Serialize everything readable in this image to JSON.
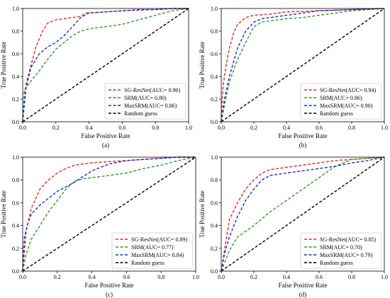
{
  "chart_data": [
    {
      "type": "line",
      "panel_label": "(a)",
      "xlabel": "False Positive Rate",
      "ylabel": "True Positive Rate",
      "xlim": [
        0.0,
        1.0
      ],
      "ylim": [
        0.0,
        1.0
      ],
      "xticks": [
        "0.0",
        "0.2",
        "0.4",
        "0.6",
        "0.8",
        "1.0"
      ],
      "yticks": [
        "0.0",
        "0.2",
        "0.4",
        "0.6",
        "0.8",
        "1.0"
      ],
      "grid": false,
      "legend_position": "lower-right",
      "series": [
        {
          "name": "SG-ResNet(AUC= 0.90)",
          "color": "#e8241c",
          "dash": "dashed",
          "x": [
            0,
            0.02,
            0.05,
            0.08,
            0.12,
            0.15,
            0.2,
            0.3,
            0.35,
            0.38,
            0.5,
            0.6,
            0.8,
            0.9,
            1.0
          ],
          "y": [
            0,
            0.33,
            0.5,
            0.66,
            0.8,
            0.87,
            0.9,
            0.92,
            0.93,
            0.96,
            0.97,
            0.98,
            0.99,
            1.0,
            1.0
          ]
        },
        {
          "name": "SRM(AUC= 0.80)",
          "color": "#2a9d22",
          "dash": "dashed",
          "x": [
            0,
            0.01,
            0.05,
            0.1,
            0.15,
            0.2,
            0.25,
            0.3,
            0.35,
            0.4,
            0.5,
            0.6,
            0.7,
            0.8,
            0.9,
            1.0
          ],
          "y": [
            0,
            0.28,
            0.36,
            0.45,
            0.55,
            0.64,
            0.7,
            0.76,
            0.8,
            0.82,
            0.84,
            0.86,
            0.9,
            0.94,
            0.98,
            1.0
          ]
        },
        {
          "name": "MaxSRM(AUC= 0.86)",
          "color": "#1f2ad8",
          "dash": "dashed",
          "x": [
            0,
            0.02,
            0.05,
            0.1,
            0.15,
            0.2,
            0.25,
            0.3,
            0.35,
            0.4,
            0.5,
            0.6,
            0.7,
            0.8,
            0.9,
            1.0
          ],
          "y": [
            0,
            0.3,
            0.48,
            0.6,
            0.66,
            0.7,
            0.76,
            0.84,
            0.92,
            0.96,
            0.97,
            0.98,
            0.99,
            0.99,
            1.0,
            1.0
          ]
        },
        {
          "name": "Random guess",
          "color": "#000000",
          "dash": "dashed",
          "x": [
            0,
            1.0
          ],
          "y": [
            0,
            1.0
          ]
        }
      ]
    },
    {
      "type": "line",
      "panel_label": "(b)",
      "xlabel": "False Positive Rate",
      "ylabel": "True Positive Rate",
      "xlim": [
        0.0,
        1.0
      ],
      "ylim": [
        0.0,
        1.0
      ],
      "xticks": [
        "0.0",
        "0.2",
        "0.4",
        "0.6",
        "0.8",
        "1.0"
      ],
      "yticks": [
        "0.0",
        "0.2",
        "0.4",
        "0.6",
        "0.8",
        "1.0"
      ],
      "grid": false,
      "legend_position": "lower-right",
      "series": [
        {
          "name": "SG-ResNet(AUC= 0.94)",
          "color": "#e8241c",
          "dash": "dashed",
          "x": [
            0,
            0.01,
            0.03,
            0.05,
            0.08,
            0.1,
            0.15,
            0.2,
            0.3,
            0.4,
            0.6,
            0.8,
            1.0
          ],
          "y": [
            0,
            0.3,
            0.5,
            0.65,
            0.8,
            0.86,
            0.92,
            0.94,
            0.95,
            0.97,
            0.98,
            0.99,
            1.0
          ]
        },
        {
          "name": "SRM(AUC= 0.86)",
          "color": "#2a9d22",
          "dash": "dashed",
          "x": [
            0,
            0.02,
            0.05,
            0.1,
            0.15,
            0.2,
            0.25,
            0.3,
            0.4,
            0.5,
            0.6,
            0.7,
            0.8,
            0.9,
            1.0
          ],
          "y": [
            0,
            0.15,
            0.35,
            0.55,
            0.7,
            0.84,
            0.88,
            0.89,
            0.91,
            0.92,
            0.94,
            0.96,
            0.98,
            0.99,
            1.0
          ]
        },
        {
          "name": "MaxSRM(AUC= 0.90)",
          "color": "#1f2ad8",
          "dash": "dashed",
          "x": [
            0,
            0.02,
            0.05,
            0.1,
            0.15,
            0.2,
            0.25,
            0.3,
            0.4,
            0.5,
            0.6,
            0.8,
            1.0
          ],
          "y": [
            0,
            0.2,
            0.4,
            0.65,
            0.8,
            0.88,
            0.91,
            0.92,
            0.94,
            0.96,
            0.98,
            0.99,
            1.0
          ]
        },
        {
          "name": "Random guess",
          "color": "#000000",
          "dash": "dashed",
          "x": [
            0,
            1.0
          ],
          "y": [
            0,
            1.0
          ]
        }
      ]
    },
    {
      "type": "line",
      "panel_label": "(c)",
      "xlabel": "False Positive Rate",
      "ylabel": "True Positive Rate",
      "xlim": [
        0.0,
        1.0
      ],
      "ylim": [
        0.0,
        1.0
      ],
      "xticks": [
        "0.0",
        "0.2",
        "0.4",
        "0.6",
        "0.8",
        "1.0"
      ],
      "yticks": [
        "0.0",
        "0.2",
        "0.4",
        "0.6",
        "0.8",
        "1.0"
      ],
      "grid": false,
      "legend_position": "lower-right",
      "series": [
        {
          "name": "SG-ResNet(AUC= 0.89)",
          "color": "#e8241c",
          "dash": "dashed",
          "x": [
            0,
            0.02,
            0.05,
            0.1,
            0.15,
            0.2,
            0.25,
            0.3,
            0.4,
            0.5,
            0.6,
            0.7,
            0.8,
            0.9,
            1.0
          ],
          "y": [
            0,
            0.35,
            0.55,
            0.72,
            0.8,
            0.86,
            0.9,
            0.93,
            0.95,
            0.96,
            0.97,
            0.98,
            0.99,
            1.0,
            1.0
          ]
        },
        {
          "name": "SRM(AUC= 0.77)",
          "color": "#2a9d22",
          "dash": "dashed",
          "x": [
            0,
            0.02,
            0.05,
            0.1,
            0.15,
            0.2,
            0.25,
            0.3,
            0.35,
            0.4,
            0.5,
            0.6,
            0.7,
            0.8,
            0.9,
            1.0
          ],
          "y": [
            0,
            0.15,
            0.28,
            0.4,
            0.52,
            0.62,
            0.72,
            0.79,
            0.81,
            0.82,
            0.84,
            0.86,
            0.9,
            0.93,
            0.97,
            1.0
          ]
        },
        {
          "name": "MaxSRM(AUC= 0.84)",
          "color": "#1f2ad8",
          "dash": "dashed",
          "x": [
            0,
            0.01,
            0.03,
            0.05,
            0.1,
            0.15,
            0.2,
            0.3,
            0.4,
            0.5,
            0.6,
            0.7,
            0.8,
            0.9,
            1.0
          ],
          "y": [
            0,
            0.3,
            0.42,
            0.5,
            0.58,
            0.64,
            0.7,
            0.78,
            0.88,
            0.94,
            0.97,
            0.98,
            0.99,
            1.0,
            1.0
          ]
        },
        {
          "name": "Random guess",
          "color": "#000000",
          "dash": "dashed",
          "x": [
            0,
            1.0
          ],
          "y": [
            0,
            1.0
          ]
        }
      ]
    },
    {
      "type": "line",
      "panel_label": "(d)",
      "xlabel": "False Positive Rate",
      "ylabel": "True Positive Rate",
      "xlim": [
        0.0,
        1.0
      ],
      "ylim": [
        0.0,
        1.0
      ],
      "xticks": [
        "0.0",
        "0.2",
        "0.4",
        "0.6",
        "0.8",
        "1.0"
      ],
      "yticks": [
        "0.0",
        "0.2",
        "0.4",
        "0.6",
        "0.8",
        "1.0"
      ],
      "grid": false,
      "legend_position": "lower-right",
      "series": [
        {
          "name": "SG-ResNet(AUC= 0.85)",
          "color": "#e8241c",
          "dash": "dashed",
          "x": [
            0,
            0.05,
            0.1,
            0.15,
            0.2,
            0.25,
            0.3,
            0.35,
            0.4,
            0.5,
            0.6,
            0.7,
            0.8,
            0.9,
            1.0
          ],
          "y": [
            0,
            0.45,
            0.6,
            0.72,
            0.8,
            0.86,
            0.89,
            0.9,
            0.91,
            0.93,
            0.95,
            0.97,
            0.98,
            0.99,
            1.0
          ]
        },
        {
          "name": "SRM(AUC= 0.70)",
          "color": "#2a9d22",
          "dash": "dashed",
          "x": [
            0,
            0.05,
            0.1,
            0.15,
            0.2,
            0.25,
            0.3,
            0.4,
            0.5,
            0.6,
            0.7,
            0.8,
            0.9,
            1.0
          ],
          "y": [
            0,
            0.18,
            0.3,
            0.35,
            0.4,
            0.46,
            0.52,
            0.62,
            0.72,
            0.82,
            0.92,
            0.98,
            0.99,
            1.0
          ]
        },
        {
          "name": "MaxSRM(AUC= 0.79)",
          "color": "#1f2ad8",
          "dash": "dashed",
          "x": [
            0,
            0.02,
            0.05,
            0.1,
            0.15,
            0.2,
            0.25,
            0.3,
            0.4,
            0.5,
            0.6,
            0.7,
            0.8,
            0.9,
            1.0
          ],
          "y": [
            0,
            0.15,
            0.3,
            0.48,
            0.62,
            0.72,
            0.8,
            0.84,
            0.86,
            0.88,
            0.9,
            0.92,
            0.95,
            0.97,
            1.0
          ]
        },
        {
          "name": "Random guess",
          "color": "#000000",
          "dash": "dashed",
          "x": [
            0,
            1.0
          ],
          "y": [
            0,
            1.0
          ]
        }
      ]
    }
  ]
}
